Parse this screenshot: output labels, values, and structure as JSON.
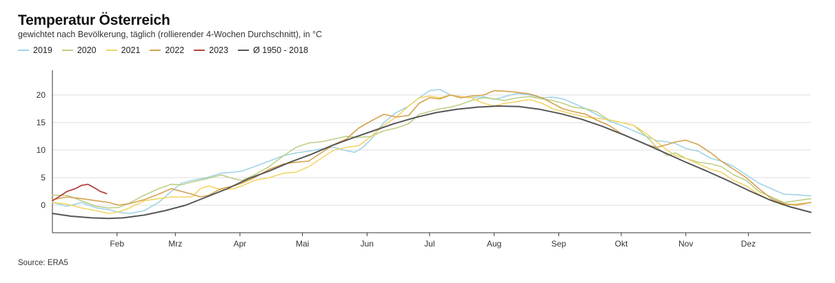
{
  "chart_data": {
    "type": "line",
    "title": "Temperatur Österreich",
    "subtitle": "gewichtet nach Bevölkerung, täglich (rollierender 4-Wochen Durchschnitt), in °C",
    "source": "Source: ERA5",
    "x_unit": "day_of_year",
    "xlim": [
      1,
      365
    ],
    "ylim": [
      -5,
      24
    ],
    "yticks": [
      0,
      5,
      10,
      15,
      20
    ],
    "ytick_labels": [
      "0",
      "5",
      "10",
      "15",
      "20"
    ],
    "months": [
      {
        "label": "Feb",
        "day": 32
      },
      {
        "label": "Mrz",
        "day": 60
      },
      {
        "label": "Apr",
        "day": 91
      },
      {
        "label": "Mai",
        "day": 121
      },
      {
        "label": "Jun",
        "day": 152
      },
      {
        "label": "Jul",
        "day": 182
      },
      {
        "label": "Aug",
        "day": 213
      },
      {
        "label": "Sep",
        "day": 244
      },
      {
        "label": "Okt",
        "day": 274
      },
      {
        "label": "Nov",
        "day": 305
      },
      {
        "label": "Dez",
        "day": 335
      }
    ],
    "grid": true,
    "legend_position": "top-left",
    "series": [
      {
        "name": "2019",
        "color": "#9fd3e6",
        "width": 1.6,
        "points": [
          [
            1,
            0.5
          ],
          [
            8,
            -0.2
          ],
          [
            15,
            0.5
          ],
          [
            22,
            -0.5
          ],
          [
            28,
            -0.8
          ],
          [
            33,
            -1.3
          ],
          [
            38,
            -1.5
          ],
          [
            45,
            -1.0
          ],
          [
            52,
            0.5
          ],
          [
            58,
            2.5
          ],
          [
            63,
            4.0
          ],
          [
            68,
            4.5
          ],
          [
            75,
            5.0
          ],
          [
            82,
            5.8
          ],
          [
            88,
            6.0
          ],
          [
            92,
            6.2
          ],
          [
            98,
            7.0
          ],
          [
            105,
            8.0
          ],
          [
            112,
            9.0
          ],
          [
            118,
            9.5
          ],
          [
            124,
            9.8
          ],
          [
            130,
            10.2
          ],
          [
            136,
            10.5
          ],
          [
            141,
            10.0
          ],
          [
            146,
            9.6
          ],
          [
            150,
            10.5
          ],
          [
            154,
            12.0
          ],
          [
            160,
            15.0
          ],
          [
            166,
            16.8
          ],
          [
            172,
            18.0
          ],
          [
            177,
            19.5
          ],
          [
            182,
            20.8
          ],
          [
            187,
            21.0
          ],
          [
            192,
            20.0
          ],
          [
            197,
            19.7
          ],
          [
            202,
            19.5
          ],
          [
            208,
            19.7
          ],
          [
            213,
            19.2
          ],
          [
            218,
            19.7
          ],
          [
            224,
            20.3
          ],
          [
            230,
            20.0
          ],
          [
            236,
            19.5
          ],
          [
            241,
            19.6
          ],
          [
            246,
            19.3
          ],
          [
            251,
            18.5
          ],
          [
            257,
            17.5
          ],
          [
            262,
            16.5
          ],
          [
            268,
            15.3
          ],
          [
            274,
            14.5
          ],
          [
            280,
            13.5
          ],
          [
            286,
            12.5
          ],
          [
            291,
            11.7
          ],
          [
            296,
            11.5
          ],
          [
            300,
            11.2
          ],
          [
            305,
            10.3
          ],
          [
            311,
            9.8
          ],
          [
            317,
            8.5
          ],
          [
            322,
            8.0
          ],
          [
            328,
            7.0
          ],
          [
            334,
            5.5
          ],
          [
            340,
            4.0
          ],
          [
            346,
            3.0
          ],
          [
            352,
            2.0
          ],
          [
            358,
            1.9
          ],
          [
            365,
            1.7
          ]
        ]
      },
      {
        "name": "2020",
        "color": "#bccf84",
        "width": 1.6,
        "points": [
          [
            1,
            1.8
          ],
          [
            8,
            1.8
          ],
          [
            15,
            0.8
          ],
          [
            22,
            -0.2
          ],
          [
            28,
            -0.5
          ],
          [
            33,
            -0.4
          ],
          [
            38,
            0.4
          ],
          [
            45,
            1.8
          ],
          [
            52,
            3.0
          ],
          [
            58,
            3.8
          ],
          [
            63,
            3.7
          ],
          [
            68,
            4.2
          ],
          [
            75,
            4.8
          ],
          [
            82,
            5.5
          ],
          [
            88,
            4.8
          ],
          [
            92,
            4.5
          ],
          [
            98,
            5.5
          ],
          [
            105,
            7.0
          ],
          [
            112,
            9.0
          ],
          [
            118,
            10.5
          ],
          [
            124,
            11.3
          ],
          [
            130,
            11.5
          ],
          [
            136,
            12.0
          ],
          [
            142,
            12.5
          ],
          [
            148,
            12.3
          ],
          [
            154,
            12.5
          ],
          [
            160,
            13.5
          ],
          [
            166,
            14.0
          ],
          [
            172,
            14.8
          ],
          [
            177,
            16.5
          ],
          [
            182,
            17.0
          ],
          [
            187,
            17.5
          ],
          [
            192,
            17.8
          ],
          [
            197,
            18.3
          ],
          [
            202,
            19.0
          ],
          [
            208,
            19.5
          ],
          [
            213,
            19.3
          ],
          [
            218,
            19.0
          ],
          [
            224,
            19.5
          ],
          [
            230,
            19.7
          ],
          [
            236,
            19.3
          ],
          [
            241,
            19.0
          ],
          [
            246,
            18.5
          ],
          [
            251,
            17.8
          ],
          [
            257,
            17.5
          ],
          [
            262,
            17.0
          ],
          [
            268,
            15.5
          ],
          [
            274,
            15.0
          ],
          [
            280,
            14.5
          ],
          [
            286,
            12.5
          ],
          [
            291,
            10.5
          ],
          [
            296,
            9.0
          ],
          [
            300,
            9.5
          ],
          [
            305,
            8.5
          ],
          [
            311,
            7.8
          ],
          [
            317,
            7.5
          ],
          [
            322,
            7.0
          ],
          [
            328,
            5.5
          ],
          [
            334,
            4.5
          ],
          [
            340,
            2.5
          ],
          [
            346,
            1.5
          ],
          [
            352,
            0.5
          ],
          [
            358,
            0.8
          ],
          [
            365,
            1.2
          ]
        ]
      },
      {
        "name": "2021",
        "color": "#f3d465",
        "width": 1.6,
        "points": [
          [
            1,
            0.5
          ],
          [
            8,
            0.2
          ],
          [
            15,
            -0.5
          ],
          [
            22,
            -1.0
          ],
          [
            28,
            -1.5
          ],
          [
            33,
            -1.2
          ],
          [
            38,
            -0.5
          ],
          [
            45,
            0.8
          ],
          [
            52,
            1.2
          ],
          [
            58,
            1.5
          ],
          [
            63,
            1.5
          ],
          [
            68,
            1.5
          ],
          [
            72,
            3.0
          ],
          [
            76,
            3.5
          ],
          [
            82,
            2.8
          ],
          [
            88,
            3.0
          ],
          [
            92,
            3.5
          ],
          [
            98,
            4.5
          ],
          [
            105,
            5.0
          ],
          [
            112,
            5.8
          ],
          [
            118,
            6.0
          ],
          [
            124,
            7.0
          ],
          [
            130,
            8.5
          ],
          [
            136,
            10.0
          ],
          [
            142,
            10.5
          ],
          [
            148,
            10.8
          ],
          [
            154,
            12.5
          ],
          [
            160,
            14.5
          ],
          [
            166,
            16.0
          ],
          [
            172,
            18.0
          ],
          [
            177,
            19.5
          ],
          [
            182,
            19.8
          ],
          [
            187,
            19.5
          ],
          [
            192,
            20.0
          ],
          [
            197,
            19.7
          ],
          [
            202,
            19.5
          ],
          [
            208,
            18.5
          ],
          [
            213,
            18.0
          ],
          [
            218,
            18.5
          ],
          [
            224,
            18.8
          ],
          [
            230,
            19.2
          ],
          [
            236,
            18.5
          ],
          [
            241,
            17.5
          ],
          [
            246,
            17.0
          ],
          [
            251,
            16.5
          ],
          [
            257,
            16.0
          ],
          [
            262,
            15.8
          ],
          [
            268,
            15.5
          ],
          [
            274,
            15.0
          ],
          [
            280,
            14.5
          ],
          [
            286,
            13.0
          ],
          [
            291,
            11.5
          ],
          [
            296,
            10.0
          ],
          [
            300,
            9.0
          ],
          [
            305,
            8.5
          ],
          [
            311,
            7.5
          ],
          [
            317,
            6.5
          ],
          [
            322,
            6.0
          ],
          [
            328,
            4.5
          ],
          [
            334,
            3.5
          ],
          [
            340,
            2.0
          ],
          [
            346,
            0.8
          ],
          [
            352,
            0.0
          ],
          [
            358,
            0.2
          ],
          [
            365,
            0.5
          ]
        ]
      },
      {
        "name": "2022",
        "color": "#d4a04c",
        "width": 1.6,
        "points": [
          [
            1,
            1.0
          ],
          [
            8,
            1.5
          ],
          [
            15,
            1.2
          ],
          [
            22,
            0.8
          ],
          [
            28,
            0.5
          ],
          [
            33,
            0.0
          ],
          [
            38,
            0.3
          ],
          [
            45,
            1.0
          ],
          [
            52,
            2.0
          ],
          [
            58,
            3.0
          ],
          [
            63,
            2.5
          ],
          [
            68,
            2.0
          ],
          [
            72,
            1.5
          ],
          [
            76,
            1.8
          ],
          [
            82,
            3.0
          ],
          [
            88,
            3.5
          ],
          [
            92,
            4.0
          ],
          [
            98,
            5.0
          ],
          [
            105,
            6.5
          ],
          [
            112,
            7.5
          ],
          [
            118,
            7.8
          ],
          [
            124,
            8.0
          ],
          [
            130,
            9.5
          ],
          [
            136,
            11.0
          ],
          [
            142,
            12.0
          ],
          [
            148,
            14.0
          ],
          [
            154,
            15.3
          ],
          [
            160,
            16.5
          ],
          [
            166,
            16.0
          ],
          [
            172,
            16.3
          ],
          [
            177,
            18.5
          ],
          [
            182,
            19.5
          ],
          [
            187,
            19.3
          ],
          [
            192,
            20.0
          ],
          [
            197,
            19.5
          ],
          [
            202,
            19.8
          ],
          [
            208,
            20.0
          ],
          [
            213,
            20.8
          ],
          [
            218,
            20.7
          ],
          [
            224,
            20.5
          ],
          [
            230,
            20.2
          ],
          [
            236,
            19.5
          ],
          [
            241,
            18.5
          ],
          [
            246,
            17.5
          ],
          [
            251,
            17.0
          ],
          [
            257,
            16.5
          ],
          [
            262,
            15.5
          ],
          [
            268,
            14.5
          ],
          [
            274,
            13.0
          ],
          [
            280,
            12.0
          ],
          [
            286,
            11.0
          ],
          [
            291,
            10.5
          ],
          [
            296,
            11.0
          ],
          [
            300,
            11.5
          ],
          [
            305,
            11.8
          ],
          [
            311,
            11.0
          ],
          [
            317,
            9.5
          ],
          [
            322,
            8.0
          ],
          [
            328,
            6.5
          ],
          [
            334,
            5.0
          ],
          [
            340,
            3.0
          ],
          [
            346,
            1.2
          ],
          [
            352,
            0.3
          ],
          [
            358,
            0.0
          ],
          [
            365,
            0.5
          ]
        ]
      },
      {
        "name": "2023",
        "color": "#b5403c",
        "width": 1.8,
        "points": [
          [
            1,
            0.8
          ],
          [
            4,
            1.5
          ],
          [
            8,
            2.5
          ],
          [
            12,
            3.0
          ],
          [
            15,
            3.6
          ],
          [
            18,
            3.8
          ],
          [
            21,
            3.2
          ],
          [
            24,
            2.5
          ],
          [
            27,
            2.1
          ]
        ]
      },
      {
        "name": "Ø 1950 - 2018",
        "color": "#555555",
        "width": 2.0,
        "points": [
          [
            1,
            -1.5
          ],
          [
            10,
            -2.0
          ],
          [
            20,
            -2.3
          ],
          [
            28,
            -2.4
          ],
          [
            35,
            -2.3
          ],
          [
            45,
            -1.8
          ],
          [
            55,
            -1.0
          ],
          [
            65,
            0.0
          ],
          [
            75,
            1.5
          ],
          [
            85,
            3.0
          ],
          [
            95,
            4.8
          ],
          [
            105,
            6.2
          ],
          [
            115,
            7.8
          ],
          [
            125,
            9.2
          ],
          [
            135,
            10.8
          ],
          [
            145,
            12.2
          ],
          [
            155,
            13.5
          ],
          [
            165,
            14.8
          ],
          [
            175,
            15.9
          ],
          [
            185,
            16.8
          ],
          [
            195,
            17.4
          ],
          [
            205,
            17.8
          ],
          [
            215,
            18.0
          ],
          [
            225,
            17.9
          ],
          [
            235,
            17.4
          ],
          [
            245,
            16.6
          ],
          [
            255,
            15.6
          ],
          [
            265,
            14.3
          ],
          [
            275,
            12.8
          ],
          [
            285,
            11.2
          ],
          [
            295,
            9.5
          ],
          [
            305,
            7.8
          ],
          [
            315,
            6.2
          ],
          [
            325,
            4.5
          ],
          [
            335,
            2.7
          ],
          [
            345,
            1.0
          ],
          [
            355,
            -0.3
          ],
          [
            365,
            -1.3
          ]
        ]
      }
    ]
  }
}
